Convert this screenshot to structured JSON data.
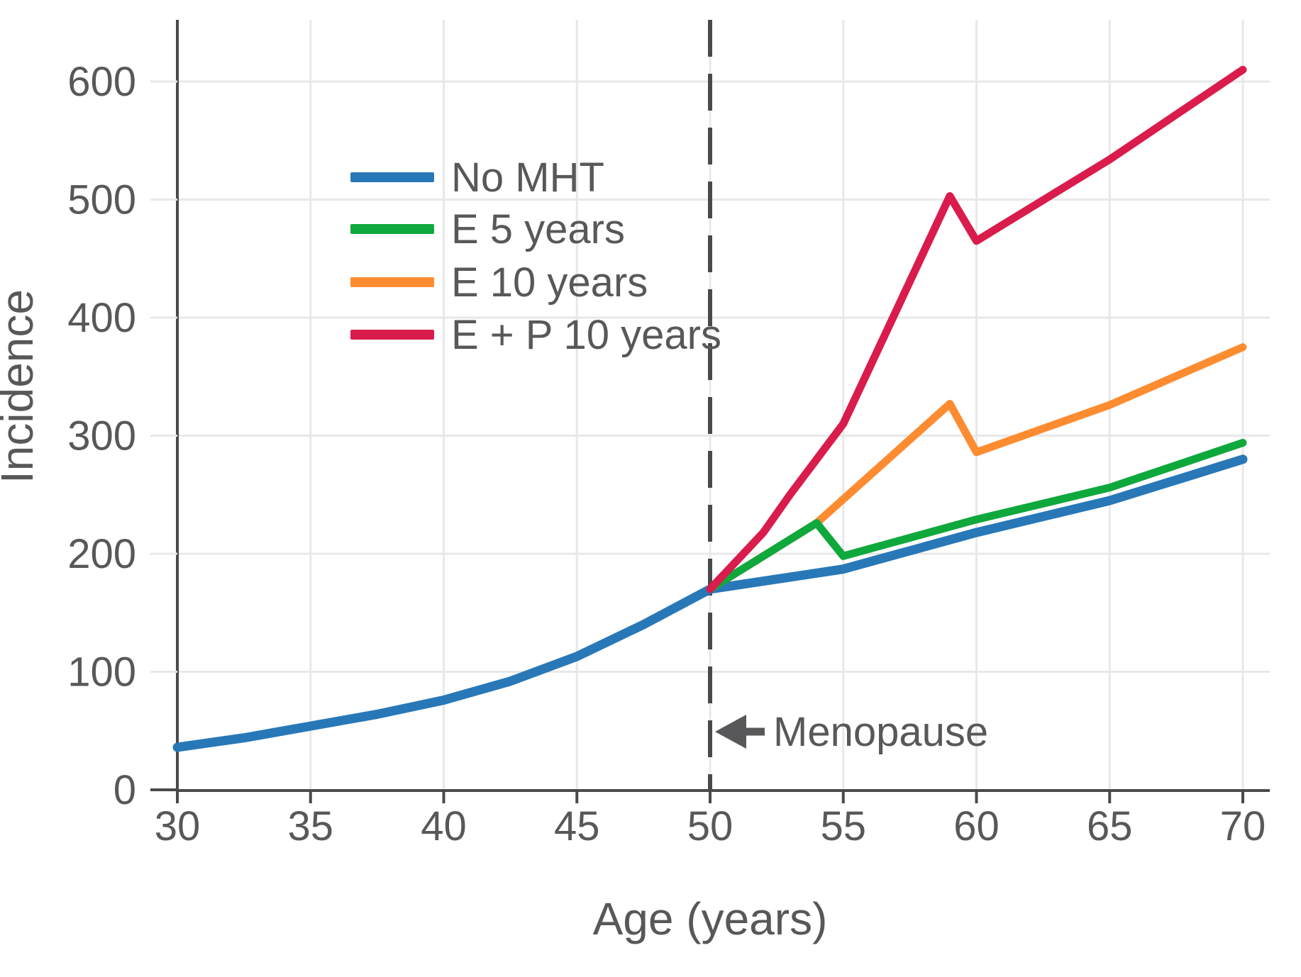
{
  "chart_data": {
    "type": "line",
    "title": "",
    "xlabel": "Age (years)",
    "ylabel": "Incidence",
    "x_ticks": [
      30,
      35,
      40,
      45,
      50,
      55,
      60,
      65,
      70
    ],
    "y_ticks": [
      0,
      100,
      200,
      300,
      400,
      500,
      600
    ],
    "xlim": [
      30,
      71
    ],
    "ylim": [
      0,
      652
    ],
    "grid": true,
    "legend_position": "upper left inside plot",
    "colors": {
      "background": "#ffffff",
      "grid": "#e8e8e8",
      "axis": "#4a4a4a",
      "text": "#58585a",
      "menopause_line": "#4a4a4a"
    },
    "menopause_line": {
      "x": 50,
      "style": "dashed",
      "label": "Menopause",
      "arrow": "left",
      "label_y": 49
    },
    "series": [
      {
        "name": "No MHT",
        "color": "#2878b8",
        "points": [
          [
            30,
            36
          ],
          [
            32.5,
            44
          ],
          [
            35,
            54
          ],
          [
            37.5,
            64
          ],
          [
            40,
            76
          ],
          [
            42.5,
            92
          ],
          [
            45,
            113
          ],
          [
            47.5,
            140
          ],
          [
            50,
            170
          ],
          [
            55,
            187
          ],
          [
            60,
            218
          ],
          [
            65,
            245
          ],
          [
            70,
            280
          ]
        ]
      },
      {
        "name": "E 10 years",
        "color": "#fd8c31",
        "points": [
          [
            50,
            170
          ],
          [
            54,
            226
          ],
          [
            59,
            327
          ],
          [
            60,
            286
          ],
          [
            65,
            326
          ],
          [
            70,
            375
          ]
        ]
      },
      {
        "name": "E 5 years",
        "color": "#0fa83c",
        "points": [
          [
            50,
            170
          ],
          [
            54,
            226
          ],
          [
            55,
            198
          ],
          [
            60,
            229
          ],
          [
            65,
            256
          ],
          [
            70,
            294
          ]
        ]
      },
      {
        "name": "E + P 10 years",
        "color": "#d91c4c",
        "points": [
          [
            50,
            170
          ],
          [
            52,
            218
          ],
          [
            53,
            250
          ],
          [
            55,
            310
          ],
          [
            59,
            503
          ],
          [
            60,
            465
          ],
          [
            65,
            534
          ],
          [
            70,
            610
          ]
        ]
      }
    ],
    "legend_order": [
      "No MHT",
      "E 5 years",
      "E 10 years",
      "E + P 10 years"
    ],
    "annotation": {
      "text": "Menopause"
    }
  }
}
